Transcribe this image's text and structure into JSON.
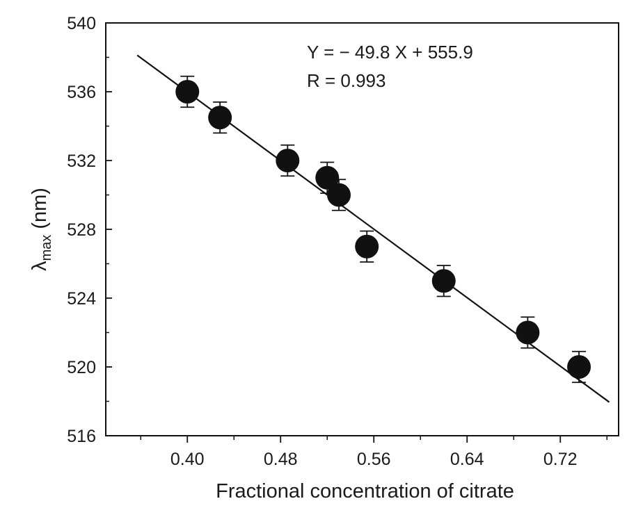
{
  "chart_data": {
    "type": "scatter",
    "xlabel": "Fractional concentration of citrate",
    "ylabel": "λmax (nm)",
    "ylabel_main": "λ",
    "ylabel_sub": "max",
    "ylabel_unit": " (nm)",
    "xlim": [
      0.33,
      0.77
    ],
    "ylim": [
      516,
      540
    ],
    "x_ticks": [
      0.4,
      0.48,
      0.56,
      0.64,
      0.72
    ],
    "x_tick_labels": [
      "0.40",
      "0.48",
      "0.56",
      "0.64",
      "0.72"
    ],
    "y_ticks": [
      516,
      520,
      524,
      528,
      532,
      536,
      540
    ],
    "y_tick_labels": [
      "516",
      "520",
      "524",
      "528",
      "532",
      "536",
      "540"
    ],
    "points": [
      {
        "x": 0.4,
        "y": 536.0,
        "err": 0.9
      },
      {
        "x": 0.428,
        "y": 534.5,
        "err": 0.9
      },
      {
        "x": 0.486,
        "y": 532.0,
        "err": 0.9
      },
      {
        "x": 0.52,
        "y": 531.0,
        "err": 0.9
      },
      {
        "x": 0.53,
        "y": 530.0,
        "err": 0.9
      },
      {
        "x": 0.554,
        "y": 527.0,
        "err": 0.9
      },
      {
        "x": 0.62,
        "y": 525.0,
        "err": 0.9
      },
      {
        "x": 0.692,
        "y": 522.0,
        "err": 0.9
      },
      {
        "x": 0.736,
        "y": 520.0,
        "err": 0.9
      }
    ],
    "fit_line": {
      "slope": -49.8,
      "intercept": 555.9,
      "x_range": [
        0.357,
        0.762
      ]
    },
    "annotations": {
      "equation": "Y = − 49.8 X  + 555.9",
      "r_value": "R = 0.993"
    },
    "grid": false,
    "legend": "none",
    "colors": {
      "marker": "#111111",
      "line": "#111111",
      "axis": "#111111"
    }
  }
}
